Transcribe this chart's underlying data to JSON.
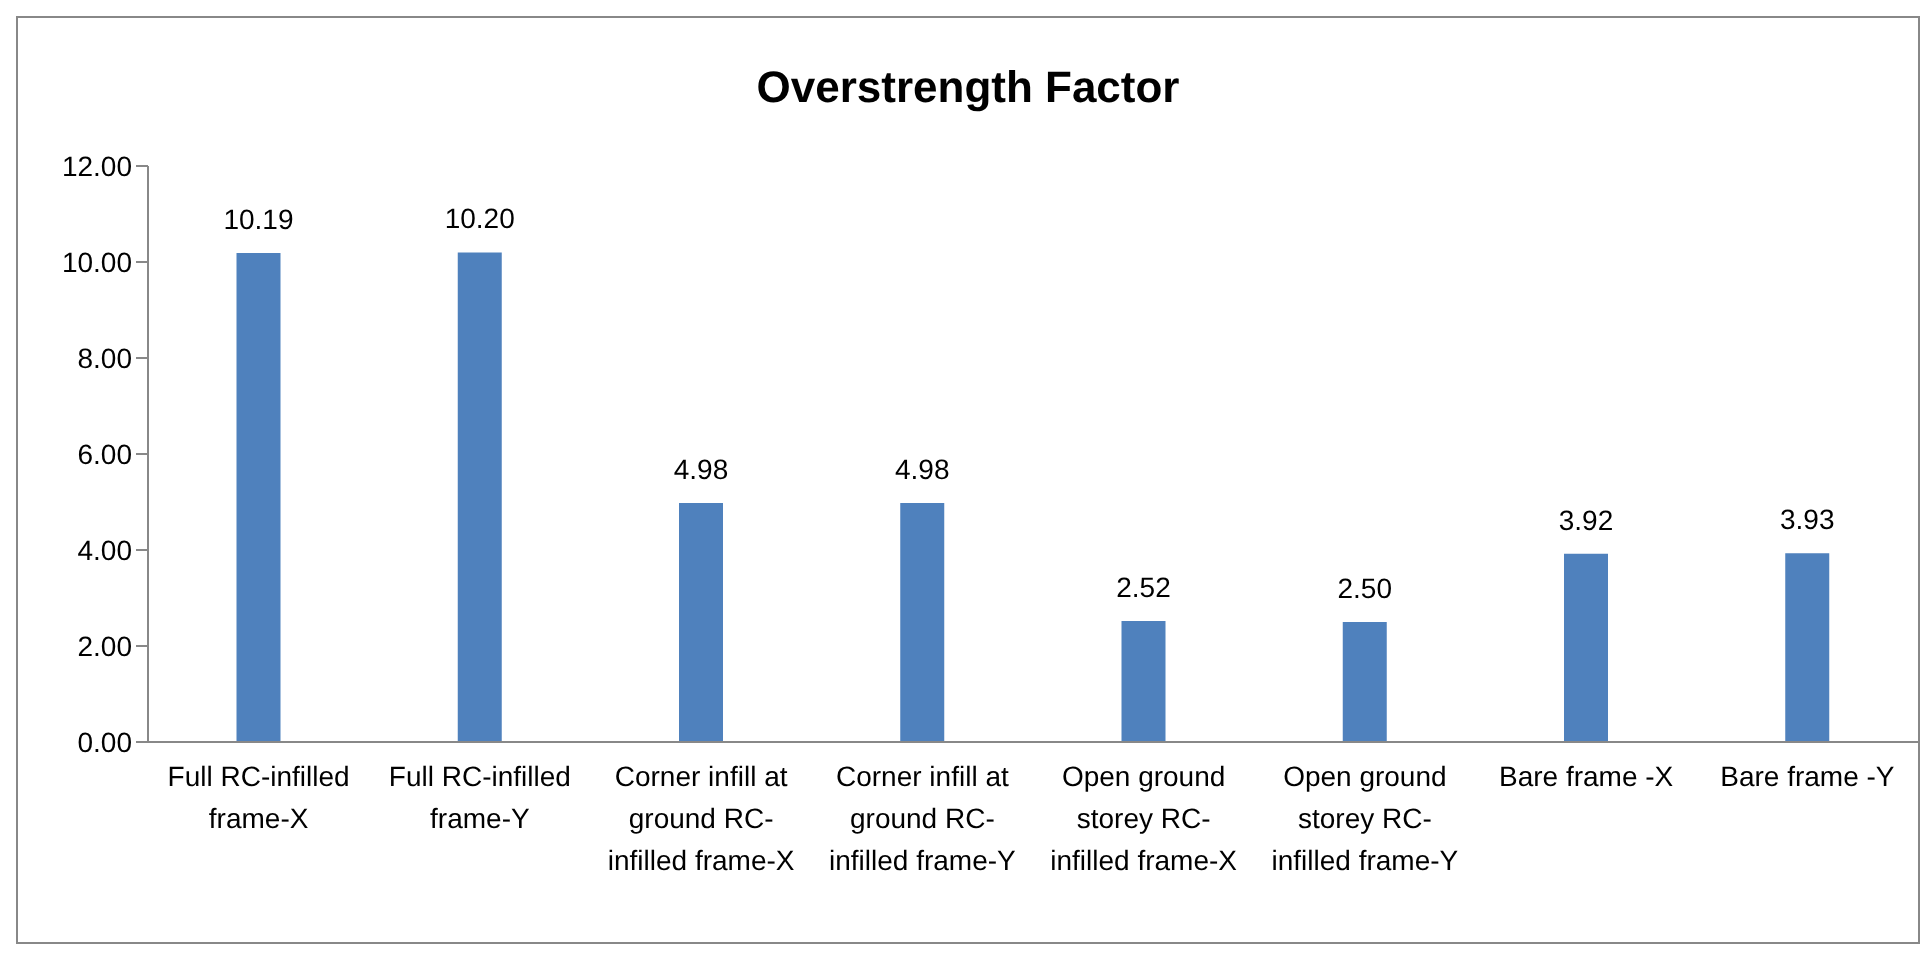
{
  "chart_data": {
    "type": "bar",
    "title": "Overstrength Factor",
    "categories": [
      "Full RC-infilled frame-X",
      "Full RC-infilled frame-Y",
      "Corner infill at ground RC-infilled frame-X",
      "Corner infill at ground RC-infilled frame-Y",
      "Open ground storey RC-infilled frame-X",
      "Open ground storey RC-infilled frame-Y",
      "Bare frame -X",
      "Bare frame -Y"
    ],
    "values": [
      10.19,
      10.2,
      4.98,
      4.98,
      2.52,
      2.5,
      3.92,
      3.93
    ],
    "value_labels": [
      "10.19",
      "10.20",
      "4.98",
      "4.98",
      "2.52",
      "2.50",
      "3.92",
      "3.93"
    ],
    "color": "#4f81bd",
    "ylim": [
      0,
      12
    ],
    "yticks": [
      {
        "value": 0,
        "label": "0.00"
      },
      {
        "value": 2,
        "label": "2.00"
      },
      {
        "value": 4,
        "label": "4.00"
      },
      {
        "value": 6,
        "label": "6.00"
      },
      {
        "value": 8,
        "label": "8.00"
      },
      {
        "value": 10,
        "label": "10.00"
      },
      {
        "value": 12,
        "label": "12.00"
      }
    ],
    "grid": false,
    "legend": false
  }
}
